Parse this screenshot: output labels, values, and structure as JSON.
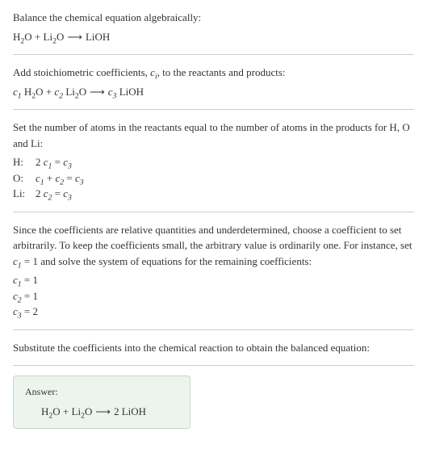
{
  "colors": {
    "text": "#333333",
    "background": "#ffffff",
    "divider": "#cccccc",
    "answer_bg": "#edf4ed",
    "answer_border": "#c8d8c8"
  },
  "typography": {
    "body_fontsize": 13,
    "answer_label_fontsize": 12,
    "font_family": "Georgia, 'Times New Roman', serif"
  },
  "sections": {
    "s1": {
      "line1": "Balance the chemical equation algebraically:",
      "eq": {
        "lhs1": "H",
        "lhs1_sub": "2",
        "lhs1b": "O",
        "plus1": " + ",
        "lhs2": "Li",
        "lhs2_sub": "2",
        "lhs2b": "O",
        "arrow": "⟶",
        "rhs1": "LiOH"
      }
    },
    "s2": {
      "line1_a": "Add stoichiometric coefficients, ",
      "line1_ci": "c",
      "line1_ci_sub": "i",
      "line1_b": ", to the reactants and products:",
      "eq": {
        "c1": "c",
        "c1_sub": "1",
        "sp1": " ",
        "t1a": "H",
        "t1a_sub": "2",
        "t1b": "O",
        "plus1": " + ",
        "c2": "c",
        "c2_sub": "2",
        "sp2": " ",
        "t2a": "Li",
        "t2a_sub": "2",
        "t2b": "O",
        "arrow": "⟶",
        "c3": "c",
        "c3_sub": "3",
        "sp3": " ",
        "t3": "LiOH"
      }
    },
    "s3": {
      "line1": "Set the number of atoms in the reactants equal to the number of atoms in the products for H, O and Li:",
      "rows": {
        "H": {
          "label": "H:",
          "lhs_coef": "2 ",
          "lhs_c": "c",
          "lhs_sub": "1",
          "eq": " = ",
          "rhs_c": "c",
          "rhs_sub": "3"
        },
        "O": {
          "label": "O:",
          "t1_c": "c",
          "t1_sub": "1",
          "plus": " + ",
          "t2_c": "c",
          "t2_sub": "2",
          "eq": " = ",
          "rhs_c": "c",
          "rhs_sub": "3"
        },
        "Li": {
          "label": "Li:",
          "lhs_coef": "2 ",
          "lhs_c": "c",
          "lhs_sub": "2",
          "eq": " = ",
          "rhs_c": "c",
          "rhs_sub": "3"
        }
      }
    },
    "s4": {
      "line1_a": "Since the coefficients are relative quantities and underdetermined, choose a coefficient to set arbitrarily. To keep the coefficients small, the arbitrary value is ordinarily one. For instance, set ",
      "line1_c": "c",
      "line1_c_sub": "1",
      "line1_b": " = 1 and solve the system of equations for the remaining coefficients:",
      "coefs": {
        "r1": {
          "c": "c",
          "sub": "1",
          "rest": " = 1"
        },
        "r2": {
          "c": "c",
          "sub": "2",
          "rest": " = 1"
        },
        "r3": {
          "c": "c",
          "sub": "3",
          "rest": " = 2"
        }
      }
    },
    "s5": {
      "line1": "Substitute the coefficients into the chemical reaction to obtain the balanced equation:"
    },
    "answer": {
      "label": "Answer:",
      "eq": {
        "t1a": "H",
        "t1a_sub": "2",
        "t1b": "O",
        "plus1": " + ",
        "t2a": "Li",
        "t2a_sub": "2",
        "t2b": "O",
        "arrow": "⟶",
        "rhs_coef": "2 ",
        "rhs": "LiOH"
      }
    }
  }
}
